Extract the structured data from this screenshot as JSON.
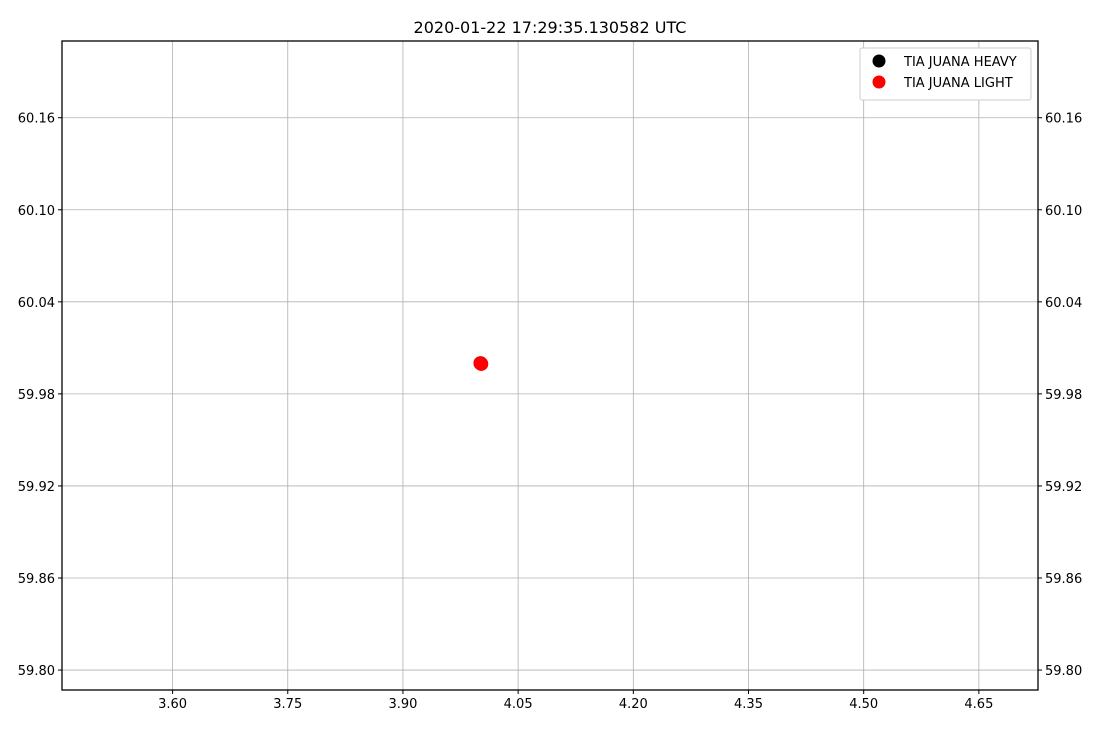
{
  "chart_data": {
    "type": "scatter",
    "title": "2020-01-22 17:29:35.130582 UTC",
    "xlabel": "",
    "ylabel": "",
    "xlim": [
      3.456,
      4.727
    ],
    "ylim": [
      59.787,
      60.21
    ],
    "x_ticks": [
      3.6,
      3.75,
      3.9,
      4.05,
      4.2,
      4.35,
      4.5,
      4.65
    ],
    "x_tick_labels": [
      "3.60",
      "3.75",
      "3.90",
      "4.05",
      "4.20",
      "4.35",
      "4.50",
      "4.65"
    ],
    "y_ticks": [
      59.8,
      59.86,
      59.92,
      59.98,
      60.04,
      60.1,
      60.16
    ],
    "y_tick_labels": [
      "59.80",
      "59.86",
      "59.92",
      "59.98",
      "60.04",
      "60.10",
      "60.16"
    ],
    "y_ticks_on_right": true,
    "grid": true,
    "legend": {
      "placement": "upper right"
    },
    "series": [
      {
        "name": "TIA JUANA HEAVY",
        "color": "#000000",
        "points": [
          {
            "x": 4.001,
            "y": 60.0
          }
        ]
      },
      {
        "name": "TIA JUANA LIGHT",
        "color": "#ff0000",
        "points": [
          {
            "x": 4.001,
            "y": 60.0
          },
          {
            "x": 4.002,
            "y": 59.9995
          }
        ]
      }
    ]
  }
}
